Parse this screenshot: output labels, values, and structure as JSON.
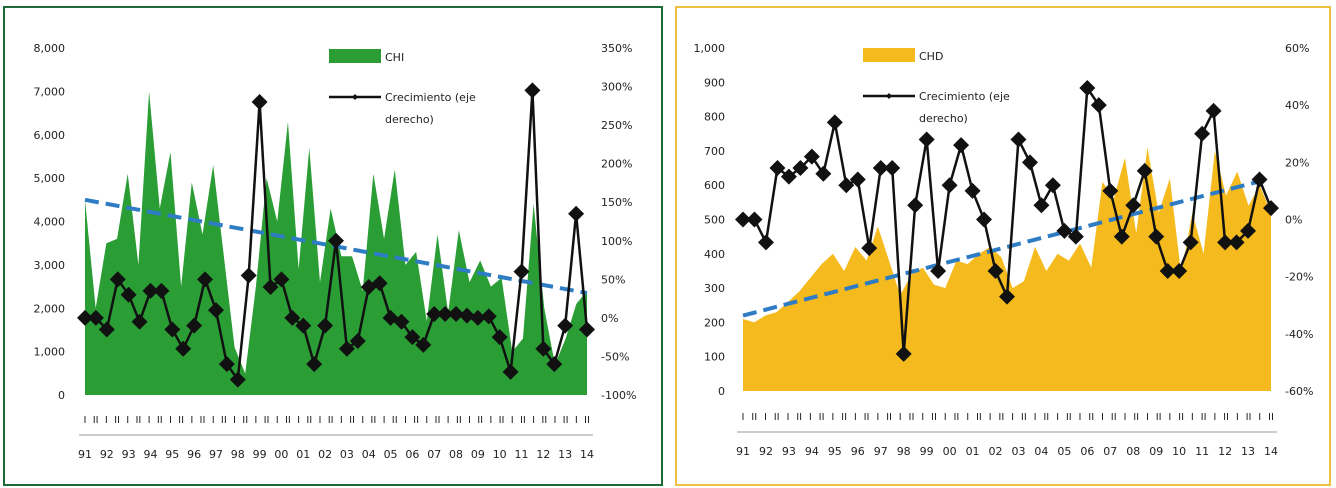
{
  "chart_data": [
    {
      "type": "area",
      "name": "CHI",
      "area_color": "#2a9d35",
      "line_color": "#111111",
      "trend_color": "#2e7cc4",
      "frame_color": "#1e6b3a",
      "yleft_ticks": [
        "8,000",
        "7,000",
        "6,000",
        "5,000",
        "4,000",
        "3,000",
        "2,000",
        "1,000",
        "0"
      ],
      "yright_ticks": [
        "350%",
        "300%",
        "250%",
        "200%",
        "150%",
        "100%",
        "50%",
        "0%",
        "-50%",
        "-100%"
      ],
      "ylim_left": [
        0,
        8000
      ],
      "ylim_right": [
        -100,
        350
      ],
      "x_year_labels": [
        "91",
        "92",
        "93",
        "94",
        "95",
        "96",
        "97",
        "98",
        "99",
        "00",
        "01",
        "02",
        "03",
        "04",
        "05",
        "06",
        "07",
        "08",
        "09",
        "10",
        "11",
        "12",
        "13",
        "14"
      ],
      "x_sub_labels": [
        "I",
        "II"
      ],
      "legend": {
        "area_label": "CHI",
        "line_label_1": "Crecimiento (eje",
        "line_label_2": "derecho)"
      },
      "area_values": [
        4500,
        2000,
        3500,
        3600,
        5100,
        3000,
        7000,
        4300,
        5600,
        2500,
        4900,
        3700,
        5300,
        3200,
        1100,
        500,
        2500,
        5000,
        4000,
        6300,
        2900,
        5700,
        2600,
        4300,
        3200,
        3200,
        2400,
        5100,
        3600,
        5200,
        3000,
        3300,
        1700,
        3700,
        1900,
        3800,
        2600,
        3100,
        2500,
        2700,
        1000,
        1300,
        4400,
        2000,
        700,
        1300,
        2100,
        2400
      ],
      "growth_values": [
        0,
        0,
        -15,
        50,
        30,
        -5,
        35,
        35,
        -15,
        -40,
        -10,
        50,
        10,
        -60,
        -80,
        55,
        280,
        40,
        50,
        0,
        -10,
        -60,
        -10,
        100,
        -40,
        -30,
        40,
        45,
        0,
        -5,
        -25,
        -35,
        5,
        5,
        5,
        3,
        0,
        2,
        -25,
        -70,
        60,
        295,
        -40,
        -60,
        -10,
        135,
        -15
      ],
      "trend": [
        4500,
        2350
      ]
    },
    {
      "type": "area",
      "name": "CHD",
      "area_color": "#f5bb1e",
      "line_color": "#111111",
      "trend_color": "#2e7cc4",
      "frame_color": "#f0c040",
      "yleft_ticks": [
        "1,000",
        "900",
        "800",
        "700",
        "600",
        "500",
        "400",
        "300",
        "200",
        "100",
        "0"
      ],
      "yright_ticks": [
        "60%",
        "40%",
        "20%",
        "0%",
        "-20%",
        "-40%",
        "-60%"
      ],
      "ylim_left": [
        0,
        1000
      ],
      "ylim_right": [
        -60,
        60
      ],
      "x_year_labels": [
        "91",
        "92",
        "93",
        "94",
        "95",
        "96",
        "97",
        "98",
        "99",
        "00",
        "01",
        "02",
        "03",
        "04",
        "05",
        "06",
        "07",
        "08",
        "09",
        "10",
        "11",
        "12",
        "13",
        "14"
      ],
      "x_sub_labels": [
        "I",
        "II"
      ],
      "legend": {
        "area_label": "CHD",
        "line_label_1": "Crecimiento (eje",
        "line_label_2": "derecho)"
      },
      "area_values": [
        210,
        200,
        220,
        230,
        260,
        290,
        330,
        370,
        400,
        350,
        420,
        380,
        480,
        380,
        280,
        340,
        360,
        310,
        300,
        380,
        370,
        400,
        420,
        390,
        300,
        320,
        420,
        350,
        400,
        380,
        430,
        360,
        610,
        560,
        680,
        460,
        710,
        520,
        620,
        340,
        520,
        400,
        700,
        570,
        640,
        540,
        600,
        520
      ],
      "growth_values": [
        0,
        0,
        -8,
        18,
        15,
        18,
        22,
        16,
        34,
        12,
        14,
        -10,
        18,
        18,
        -47,
        5,
        28,
        -18,
        12,
        26,
        10,
        0,
        -18,
        -27,
        28,
        20,
        5,
        12,
        -4,
        -6,
        46,
        40,
        10,
        -6,
        5,
        17,
        -6,
        -18,
        -18,
        -8,
        30,
        38,
        -8,
        -8,
        -4,
        14,
        4
      ],
      "trend": [
        220,
        620
      ]
    }
  ]
}
